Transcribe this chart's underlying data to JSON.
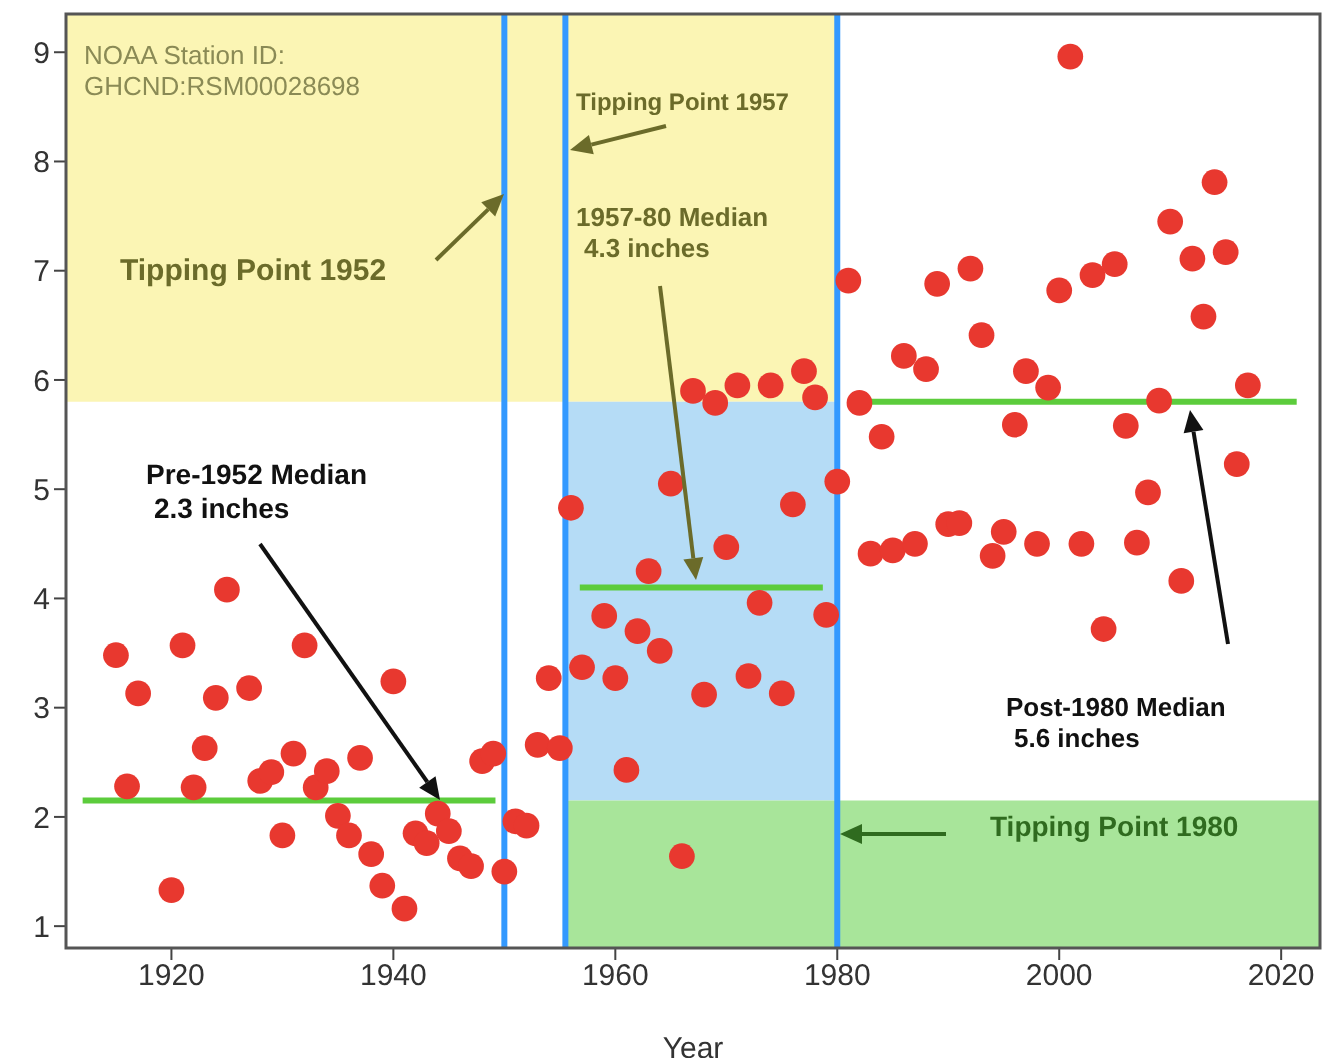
{
  "chart_data": {
    "type": "scatter",
    "xlabel": "Year",
    "xlim": [
      1910.5,
      2023.5
    ],
    "xticks": [
      1920,
      1940,
      1960,
      1980,
      2000,
      2020
    ],
    "ylim": [
      0.8,
      9.35
    ],
    "yticks": [
      1,
      2,
      3,
      4,
      5,
      6,
      7,
      8,
      9
    ],
    "bands": [
      {
        "axis": "y",
        "from": 5.8,
        "to": 9.35,
        "color": "#fbf5b4"
      },
      {
        "axis": "x",
        "from": 1955.5,
        "to": 1980,
        "color": "#b5dcf6"
      },
      {
        "axis": "y",
        "from": 0.8,
        "to": 2.15,
        "color": "#a8e59a"
      }
    ],
    "ref_lines": [
      {
        "axis": "x",
        "value": 1950,
        "color": "#3399ff"
      },
      {
        "axis": "x",
        "value": 1955.5,
        "color": "#3399ff"
      },
      {
        "axis": "x",
        "value": 1980,
        "color": "#3399ff"
      }
    ],
    "series": [
      {
        "marker": "circle",
        "color": "#e8382f",
        "x": [
          1915,
          1916,
          1917,
          1920,
          1921,
          1922,
          1923,
          1924,
          1925,
          1927,
          1928,
          1929,
          1930,
          1931,
          1932,
          1933,
          1934,
          1935,
          1936,
          1937,
          1938,
          1939,
          1940,
          1941,
          1942,
          1943,
          1944,
          1945,
          1946,
          1947,
          1948,
          1949,
          1950,
          1951,
          1952,
          1953,
          1954,
          1955,
          1956,
          1957,
          1959,
          1960,
          1961,
          1962,
          1963,
          1964,
          1965,
          1966,
          1967,
          1968,
          1969,
          1970,
          1971,
          1972,
          1973,
          1974,
          1975,
          1976,
          1977,
          1978,
          1979,
          1980,
          1981,
          1982,
          1983,
          1984,
          1985,
          1986,
          1987,
          1988,
          1989,
          1990,
          1991,
          1992,
          1993,
          1994,
          1995,
          1996,
          1997,
          1998,
          1999,
          2000,
          2001,
          2002,
          2003,
          2004,
          2005,
          2006,
          2007,
          2008,
          2009,
          2010,
          2011,
          2012,
          2013,
          2014,
          2015,
          2016,
          2017
        ],
        "values": [
          3.48,
          2.28,
          3.13,
          1.33,
          3.57,
          2.27,
          2.63,
          3.09,
          4.08,
          3.18,
          2.33,
          2.41,
          1.83,
          2.58,
          3.57,
          2.27,
          2.42,
          2.01,
          1.83,
          2.54,
          1.66,
          1.37,
          3.24,
          1.16,
          1.85,
          1.76,
          2.03,
          1.87,
          1.62,
          1.55,
          2.51,
          2.58,
          1.5,
          1.96,
          1.92,
          2.66,
          3.27,
          2.63,
          4.83,
          3.37,
          3.84,
          3.27,
          2.43,
          3.7,
          4.25,
          3.52,
          5.05,
          1.64,
          5.9,
          3.12,
          5.79,
          4.47,
          5.95,
          3.29,
          3.96,
          5.95,
          3.13,
          4.86,
          6.08,
          5.84,
          3.85,
          5.07,
          6.91,
          5.79,
          4.41,
          5.48,
          4.44,
          6.22,
          4.5,
          6.1,
          6.88,
          4.68,
          4.69,
          7.02,
          6.41,
          4.39,
          4.61,
          5.59,
          6.08,
          4.5,
          5.93,
          6.82,
          8.96,
          4.5,
          6.96,
          3.72,
          7.06,
          5.58,
          4.51,
          4.97,
          5.81,
          7.45,
          4.16,
          7.11,
          6.58,
          7.81,
          7.17,
          5.23,
          5.95
        ]
      },
      {
        "type": "line",
        "color": "#5ccc3c",
        "x": [
          1912,
          1949.2
        ],
        "values": [
          2.15,
          2.15
        ]
      },
      {
        "type": "line",
        "color": "#5ccc3c",
        "x": [
          1956.8,
          1978.7
        ],
        "values": [
          4.1,
          4.1
        ]
      },
      {
        "type": "line",
        "color": "#5ccc3c",
        "x": [
          1982.5,
          2021.4
        ],
        "values": [
          5.8,
          5.8
        ]
      }
    ],
    "annotations": [
      "NOAA Station ID:\nGHCND:RSM00028698",
      "Tipping Point 1952",
      "Tipping Point 1957",
      "1957-80 Median\n4.3 inches",
      "Pre-1952 Median\n2.3 inches",
      "Post-1980 Median\n5.6 inches",
      "Tipping Point 1980"
    ]
  }
}
